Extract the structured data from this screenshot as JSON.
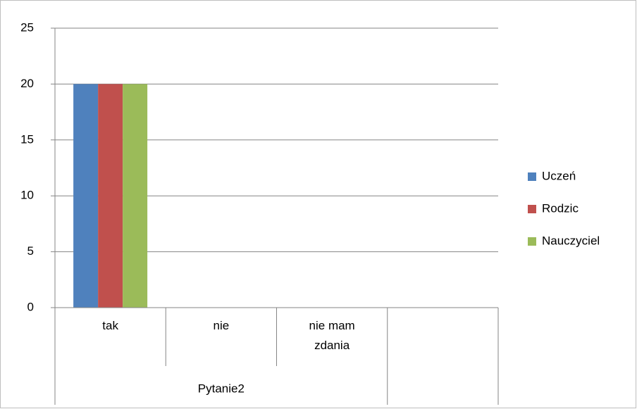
{
  "chart_data": {
    "type": "bar",
    "categories": [
      "tak",
      "nie",
      "nie mam zdania",
      null
    ],
    "category_groups": [
      "Pytanie2",
      "Pytanie2",
      "Pytanie2",
      null
    ],
    "series": [
      {
        "name": "Uczeń",
        "color": "#4f81bd",
        "values": [
          20,
          0,
          0,
          null
        ]
      },
      {
        "name": "Rodzic",
        "color": "#c0504d",
        "values": [
          20,
          0,
          0,
          null
        ]
      },
      {
        "name": "Nauczyciel",
        "color": "#9bbb59",
        "values": [
          20,
          0,
          0,
          null
        ]
      }
    ],
    "ylim": [
      0,
      25
    ],
    "yticks": [
      0,
      5,
      10,
      15,
      20,
      25
    ],
    "grid": true,
    "legend": "right"
  }
}
